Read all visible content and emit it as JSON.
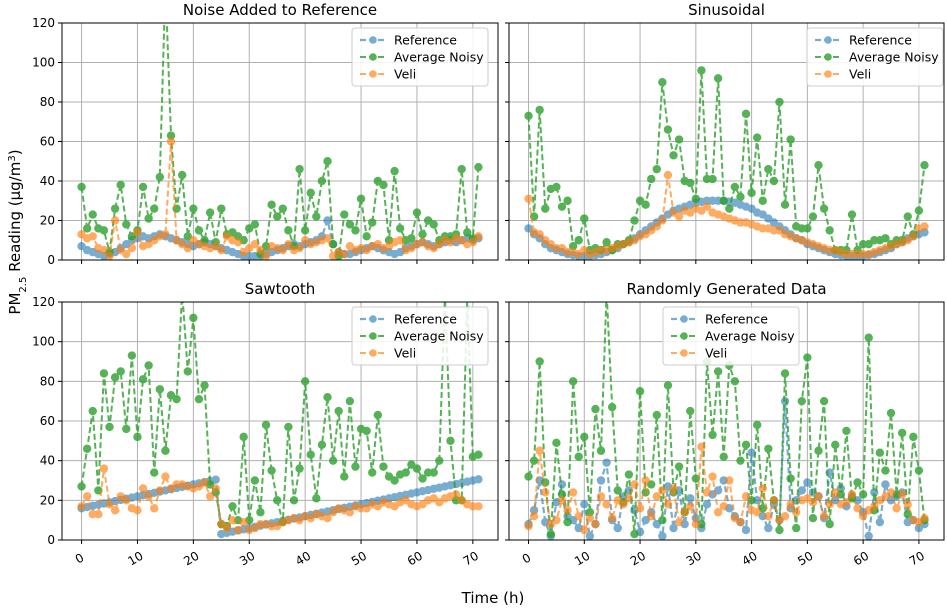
{
  "figure": {
    "xlabel": "Time (h)",
    "ylabel_main": "PM",
    "ylabel_sub": "2.5",
    "ylabel_rest": " Reading (μg/m",
    "ylabel_sup": "3",
    "ylabel_end": ")"
  },
  "chart_data": [
    {
      "type": "line",
      "title": "Noise Added to Reference",
      "ylim": [
        0,
        120
      ],
      "xlim": [
        -3.5,
        74.5
      ],
      "xticks": [
        0,
        10,
        20,
        30,
        40,
        50,
        60,
        70
      ],
      "yticks": [
        0,
        20,
        40,
        60,
        80,
        100,
        120
      ],
      "legend": [
        "Reference",
        "Average Noisy",
        "Veli"
      ],
      "series": [
        {
          "name": "Reference",
          "values": [
            7,
            5,
            4,
            3,
            2,
            3,
            4,
            6,
            8,
            10,
            11,
            12,
            11,
            12,
            13,
            12,
            11,
            10,
            9,
            8,
            7,
            8,
            9,
            8,
            7,
            6,
            5,
            4,
            3,
            2,
            2,
            2,
            2,
            3,
            4,
            5,
            6,
            7,
            8,
            7,
            8,
            9,
            10,
            12,
            20,
            8,
            4,
            3,
            3,
            4,
            5,
            6,
            7,
            6,
            5,
            4,
            3,
            4,
            6,
            7,
            8,
            9,
            8,
            7,
            8,
            9,
            10,
            9,
            10,
            11,
            10,
            11
          ]
        },
        {
          "name": "Average Noisy",
          "values": [
            37,
            16,
            23,
            16,
            15,
            4,
            26,
            38,
            18,
            12,
            15,
            37,
            21,
            26,
            42,
            140,
            63,
            26,
            43,
            12,
            26,
            15,
            10,
            24,
            9,
            26,
            13,
            14,
            12,
            10,
            16,
            18,
            3,
            7,
            28,
            22,
            26,
            15,
            7,
            46,
            15,
            34,
            22,
            40,
            50,
            8,
            2,
            23,
            18,
            15,
            31,
            12,
            19,
            40,
            38,
            10,
            45,
            16,
            10,
            11,
            24,
            13,
            20,
            18,
            10,
            12,
            12,
            13,
            46,
            14,
            11,
            47
          ]
        },
        {
          "name": "Veli",
          "values": [
            13,
            11,
            12,
            6,
            5,
            2,
            20,
            5,
            3,
            6,
            14,
            7,
            8,
            10,
            12,
            13,
            60,
            10,
            8,
            6,
            10,
            8,
            7,
            6,
            7,
            5,
            12,
            10,
            9,
            4,
            6,
            8,
            5,
            2,
            7,
            6,
            5,
            8,
            5,
            6,
            10,
            8,
            9,
            10,
            11,
            2,
            4,
            3,
            7,
            5,
            6,
            5,
            7,
            8,
            6,
            7,
            9,
            10,
            5,
            6,
            8,
            9,
            7,
            6,
            8,
            10,
            9,
            11,
            10,
            8,
            9,
            12
          ]
        }
      ]
    },
    {
      "type": "line",
      "title": "Sinusoidal",
      "ylim": [
        0,
        120
      ],
      "xlim": [
        -3.5,
        74.5
      ],
      "xticks": [
        0,
        10,
        20,
        30,
        40,
        50,
        60,
        70
      ],
      "yticks": [
        0,
        20,
        40,
        60,
        80,
        100,
        120
      ],
      "legend": [
        "Reference",
        "Average Noisy",
        "Veli"
      ],
      "series": [
        {
          "name": "Reference",
          "values": [
            16,
            13,
            11,
            8,
            6,
            5,
            4,
            3,
            2.5,
            2,
            2,
            2,
            2.5,
            3,
            4,
            5,
            6,
            8,
            9,
            11,
            13,
            15,
            17,
            19,
            21,
            23,
            25,
            26,
            27,
            28,
            29,
            29.5,
            30,
            30,
            30,
            30,
            29.5,
            29,
            28,
            27,
            26,
            24,
            23,
            21,
            19,
            17,
            15,
            13,
            11,
            10,
            8,
            7,
            6,
            5,
            4,
            3,
            2.5,
            2,
            2,
            2,
            2,
            2.5,
            3,
            4,
            5,
            6,
            8,
            9,
            11,
            12,
            13,
            14
          ]
        },
        {
          "name": "Average Noisy",
          "values": [
            73,
            22,
            76,
            26,
            36,
            37,
            27,
            30,
            7,
            10,
            21,
            5,
            6,
            5,
            9,
            5,
            8,
            8,
            10,
            20,
            30,
            28,
            41,
            46,
            90,
            66,
            53,
            61,
            40,
            39,
            31,
            96,
            41,
            41,
            92,
            30,
            26,
            37,
            32,
            74,
            34,
            62,
            30,
            46,
            40,
            80,
            28,
            61,
            17,
            16,
            16,
            22,
            48,
            26,
            15,
            5,
            5,
            5,
            23,
            5,
            8,
            8,
            10,
            10,
            11,
            8,
            10,
            10,
            22,
            13,
            25,
            48
          ]
        },
        {
          "name": "Veli",
          "values": [
            31,
            14,
            13,
            10,
            8,
            6,
            6,
            4,
            4,
            3,
            5,
            3,
            4,
            5,
            5,
            6,
            7,
            8,
            9,
            10,
            12,
            13,
            15,
            17,
            20,
            43,
            24,
            22,
            25,
            24,
            26,
            25,
            27,
            24,
            23,
            22,
            21,
            20,
            19,
            19,
            18,
            17,
            16,
            16,
            15,
            15,
            13,
            12,
            11,
            10,
            9,
            8,
            7,
            6,
            5,
            5,
            4,
            3,
            3,
            3,
            3,
            3,
            4,
            5,
            6,
            7,
            8,
            9,
            10,
            12,
            16,
            17
          ]
        }
      ]
    },
    {
      "type": "line",
      "title": "Sawtooth",
      "ylim": [
        0,
        120
      ],
      "xlim": [
        -3.5,
        74.5
      ],
      "xticks": [
        0,
        10,
        20,
        30,
        40,
        50,
        60,
        70
      ],
      "yticks": [
        0,
        20,
        40,
        60,
        80,
        100,
        120
      ],
      "legend": [
        "Reference",
        "Average Noisy",
        "Veli"
      ],
      "series": [
        {
          "name": "Reference",
          "values": [
            16,
            16.6,
            17.2,
            17.8,
            18.4,
            19,
            19.6,
            20.2,
            20.8,
            21.4,
            22,
            22.6,
            23.2,
            23.8,
            24.4,
            25,
            25.6,
            26.2,
            26.8,
            27.4,
            28,
            28.6,
            29.2,
            29.8,
            30.4,
            3,
            3.6,
            4.2,
            4.8,
            5.4,
            6,
            6.6,
            7.2,
            7.8,
            8.4,
            9,
            9.6,
            10.2,
            10.8,
            11.4,
            12,
            12.6,
            13.2,
            13.8,
            14.4,
            15,
            15.6,
            16.2,
            16.8,
            17.4,
            18,
            18.6,
            19.2,
            19.8,
            20.4,
            21,
            21.6,
            22.2,
            22.8,
            23.4,
            24,
            24.6,
            25.2,
            25.8,
            26.4,
            27,
            27.6,
            28.2,
            28.8,
            29.4,
            30,
            30.6
          ]
        },
        {
          "name": "Average Noisy",
          "values": [
            27,
            46,
            65,
            25,
            84,
            57,
            82,
            85,
            56,
            93,
            52,
            81,
            88,
            34,
            76,
            45,
            73,
            71,
            125,
            85,
            112,
            71,
            78,
            28,
            24,
            8,
            7,
            17,
            10,
            52,
            10,
            30,
            14,
            58,
            35,
            20,
            9,
            57,
            20,
            36,
            80,
            43,
            21,
            48,
            72,
            40,
            65,
            32,
            70,
            37,
            56,
            55,
            34,
            63,
            37,
            32,
            30,
            33,
            34,
            38,
            36,
            31,
            34,
            34,
            40,
            123,
            50,
            20,
            20,
            122,
            42,
            43
          ]
        },
        {
          "name": "Veli",
          "values": [
            17,
            22,
            13,
            13,
            36,
            18,
            15,
            22,
            20,
            16,
            15,
            26,
            22,
            16,
            25,
            32,
            26,
            28,
            28,
            27,
            26,
            27,
            29,
            22,
            26,
            8,
            6,
            10,
            5,
            9,
            5,
            6,
            8,
            8,
            7,
            7,
            9,
            10,
            11,
            10,
            12,
            11,
            13,
            12,
            11,
            14,
            16,
            15,
            14,
            17,
            16,
            16,
            18,
            17,
            19,
            18,
            17,
            19,
            20,
            18,
            17,
            18,
            20,
            21,
            19,
            21,
            22,
            23,
            20,
            18,
            17,
            17
          ]
        }
      ]
    },
    {
      "type": "line",
      "title": "Randomly Generated Data",
      "ylim": [
        0,
        120
      ],
      "xlim": [
        -3.5,
        74.5
      ],
      "xticks": [
        0,
        10,
        20,
        30,
        40,
        50,
        60,
        70
      ],
      "yticks": [
        0,
        20,
        40,
        60,
        80,
        100,
        120
      ],
      "legend": [
        "Reference",
        "Average Noisy",
        "Veli"
      ],
      "series": [
        {
          "name": "Reference",
          "values": [
            8,
            15,
            30,
            9,
            2,
            19,
            28,
            12,
            10,
            6,
            18,
            2,
            8,
            30,
            39,
            10,
            6,
            22,
            25,
            15,
            4,
            10,
            14,
            8,
            2,
            27,
            6,
            25,
            8,
            21,
            11,
            6,
            18,
            23,
            25,
            30,
            16,
            12,
            9,
            5,
            44,
            20,
            12,
            6,
            18,
            10,
            70,
            16,
            20,
            25,
            29,
            24,
            22,
            11,
            34,
            20,
            26,
            17,
            22,
            20,
            14,
            2,
            24,
            9,
            28,
            20,
            22,
            24,
            9,
            10,
            6,
            8
          ]
        },
        {
          "name": "Average Noisy",
          "values": [
            32,
            40,
            90,
            29,
            3,
            49,
            23,
            9,
            80,
            42,
            52,
            14,
            66,
            45,
            125,
            67,
            25,
            19,
            33,
            3,
            75,
            24,
            28,
            63,
            10,
            78,
            24,
            37,
            14,
            65,
            31,
            8,
            90,
            53,
            85,
            42,
            88,
            80,
            40,
            48,
            20,
            58,
            16,
            46,
            20,
            5,
            84,
            31,
            6,
            70,
            92,
            11,
            45,
            70,
            8,
            48,
            23,
            55,
            21,
            29,
            23,
            102,
            15,
            44,
            35,
            64,
            23,
            54,
            13,
            52,
            35,
            10
          ]
        },
        {
          "name": "Veli",
          "values": [
            7,
            12,
            45,
            24,
            8,
            10,
            20,
            15,
            24,
            12,
            5,
            11,
            8,
            22,
            18,
            11,
            20,
            18,
            21,
            28,
            16,
            30,
            12,
            22,
            25,
            18,
            26,
            9,
            14,
            17,
            8,
            47,
            24,
            32,
            14,
            17,
            30,
            11,
            9,
            22,
            15,
            14,
            26,
            12,
            20,
            10,
            12,
            18,
            14,
            20,
            21,
            19,
            22,
            12,
            18,
            24,
            18,
            19,
            23,
            16,
            12,
            15,
            17,
            20,
            22,
            24,
            16,
            23,
            18,
            10,
            9,
            11
          ]
        }
      ]
    }
  ]
}
